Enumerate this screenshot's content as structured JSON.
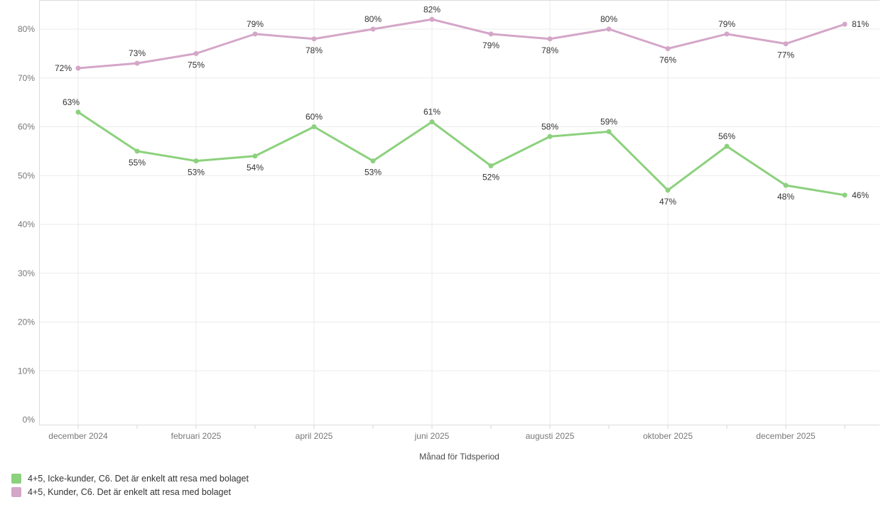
{
  "chart_data": {
    "type": "line",
    "x_axis": {
      "title": "Månad för Tidsperiod",
      "visible_tick_labels": [
        "december 2024",
        "februari 2025",
        "april 2025",
        "juni 2025",
        "augusti 2025",
        "oktober 2025",
        "december 2025"
      ],
      "labeled_point_indices": [
        0,
        2,
        4,
        6,
        8,
        10,
        12
      ],
      "n_points": 14
    },
    "y_axis": {
      "tick_labels": [
        "0%",
        "10%",
        "20%",
        "30%",
        "40%",
        "50%",
        "60%",
        "70%",
        "80%"
      ],
      "tick_values": [
        0,
        10,
        20,
        30,
        40,
        50,
        60,
        70,
        80
      ],
      "unit": "%",
      "range": [
        0,
        86
      ]
    },
    "grid": true,
    "legend_position": "bottom-left",
    "series": [
      {
        "name": "4+5, Icke-kunder, C6. Det är enkelt att resa med bolaget",
        "color": "#8CD17D",
        "values": [
          63,
          55,
          53,
          54,
          60,
          53,
          61,
          52,
          58,
          59,
          47,
          56,
          48,
          46
        ],
        "data_labels": [
          "63%",
          "55%",
          "53%",
          "54%",
          "60%",
          "53%",
          "61%",
          "52%",
          "58%",
          "59%",
          "47%",
          "56%",
          "48%",
          "46%"
        ],
        "label_positions": [
          "above-left",
          "below",
          "below",
          "below",
          "above",
          "below",
          "above",
          "below",
          "above",
          "above",
          "below",
          "above",
          "below",
          "right"
        ]
      },
      {
        "name": "4+5, Kunder, C6. Det är enkelt att resa med bolaget",
        "color": "#D4A6C8",
        "values": [
          72,
          73,
          75,
          79,
          78,
          80,
          82,
          79,
          78,
          80,
          76,
          79,
          77,
          81
        ],
        "data_labels": [
          "72%",
          "73%",
          "75%",
          "79%",
          "78%",
          "80%",
          "82%",
          "79%",
          "78%",
          "80%",
          "76%",
          "79%",
          "77%",
          "81%"
        ],
        "label_positions": [
          "left",
          "above",
          "below",
          "above",
          "below",
          "above",
          "above",
          "below",
          "below",
          "above",
          "below",
          "above",
          "below",
          "right"
        ]
      }
    ],
    "colors": {
      "grid": "#ebebeb",
      "axis_border": "#dcdcdc",
      "tick_mark": "#d4d4d4",
      "tick_label": "#787878",
      "axis_title": "#4a4a4a",
      "data_label": "#333333",
      "background": "#ffffff"
    }
  }
}
